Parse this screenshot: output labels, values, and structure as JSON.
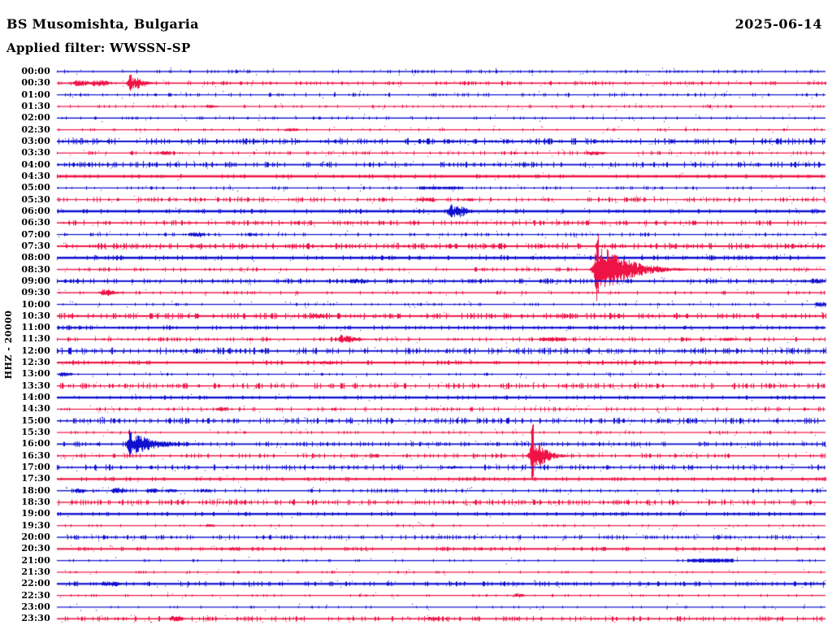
{
  "header": {
    "station": "BS Musomishta, Bulgaria",
    "filter_line": "Applied filter: WWSSN-SP",
    "date": "2025-06-14"
  },
  "axis": {
    "y_label": "HHZ - 20000",
    "first_row": "00:00",
    "last_row": "23:30",
    "minutes_per_row": 30
  },
  "colors": {
    "trace_blue": "#0f0fcf",
    "trace_red": "#ee1245",
    "text": "#000000",
    "background": "#ffffff"
  },
  "chart_data": {
    "type": "line",
    "subtype": "helicorder-seismogram",
    "title": "BS Musomishta, Bulgaria",
    "date": "2025-06-14",
    "filter": "WWSSN-SP",
    "channel": "HHZ",
    "gain": "20000",
    "minutes_per_row": 30,
    "legend_position": "none",
    "grid": false,
    "notable_events": [
      {
        "row": "00:30",
        "approx_position_min": 3,
        "size": "small",
        "color": "red"
      },
      {
        "row": "06:00",
        "approx_position_min": 15,
        "size": "small",
        "color": "blue"
      },
      {
        "row": "08:30",
        "approx_position_min": 21,
        "size": "large",
        "color": "red"
      },
      {
        "row": "16:00",
        "approx_position_min": 3,
        "size": "medium",
        "color": "blue"
      },
      {
        "row": "16:30",
        "approx_position_min": 19,
        "size": "medium",
        "color": "red"
      }
    ],
    "rows": [
      {
        "time": "00:00",
        "color": "blue",
        "thickness": 1.4,
        "noise": 0.7,
        "events": []
      },
      {
        "time": "00:30",
        "color": "red",
        "thickness": 1.6,
        "noise": 0.8,
        "events": [
          {
            "pos": 0.026,
            "amp": 3.5,
            "attack": 8,
            "coda": 6
          },
          {
            "pos": 0.05,
            "amp": 4,
            "attack": 8,
            "coda": 6
          },
          {
            "pos": 0.095,
            "amp": 7,
            "attack": 6,
            "coda": 10,
            "spike": 11
          }
        ]
      },
      {
        "time": "01:00",
        "color": "blue",
        "thickness": 1.2,
        "noise": 0.8,
        "events": []
      },
      {
        "time": "01:30",
        "color": "red",
        "thickness": 1.2,
        "noise": 0.6,
        "events": [
          {
            "pos": 0.196,
            "amp": 2,
            "attack": 5,
            "coda": 4
          }
        ]
      },
      {
        "time": "02:00",
        "color": "blue",
        "thickness": 1.4,
        "noise": 0.5,
        "events": []
      },
      {
        "time": "02:30",
        "color": "red",
        "thickness": 1.2,
        "noise": 0.5,
        "events": [
          {
            "pos": 0.3,
            "amp": 2,
            "attack": 7,
            "coda": 4
          }
        ]
      },
      {
        "time": "03:00",
        "color": "blue",
        "thickness": 2.0,
        "noise": 1.5,
        "events": []
      },
      {
        "time": "03:30",
        "color": "red",
        "thickness": 1.2,
        "noise": 0.8,
        "events": [
          {
            "pos": 0.137,
            "amp": 2.5,
            "attack": 5,
            "coda": 4
          },
          {
            "pos": 0.695,
            "amp": 2.5,
            "attack": 9,
            "coda": 5
          }
        ]
      },
      {
        "time": "04:00",
        "color": "blue",
        "thickness": 1.8,
        "noise": 1.3,
        "events": []
      },
      {
        "time": "04:30",
        "color": "red",
        "thickness": 2.6,
        "noise": 0.5,
        "events": []
      },
      {
        "time": "05:00",
        "color": "blue",
        "thickness": 1.2,
        "noise": 0.6,
        "events": [
          {
            "pos": 0.5,
            "amp": 2,
            "attack": 26,
            "coda": 5,
            "shape": "flat"
          }
        ]
      },
      {
        "time": "05:30",
        "color": "red",
        "thickness": 1.2,
        "noise": 1.2,
        "events": [
          {
            "pos": 0.475,
            "amp": 2.5,
            "attack": 9,
            "coda": 5
          },
          {
            "pos": 0.53,
            "amp": 2,
            "attack": 7,
            "coda": 4
          }
        ]
      },
      {
        "time": "06:00",
        "color": "blue",
        "thickness": 2.6,
        "noise": 0.7,
        "events": [
          {
            "pos": 0.513,
            "amp": 7,
            "attack": 9,
            "coda": 9,
            "spike": 9
          }
        ]
      },
      {
        "time": "06:30",
        "color": "red",
        "thickness": 1.6,
        "noise": 1.2,
        "events": []
      },
      {
        "time": "07:00",
        "color": "blue",
        "thickness": 1.2,
        "noise": 0.7,
        "events": [
          {
            "pos": 0.177,
            "amp": 3,
            "attack": 7,
            "coda": 5
          },
          {
            "pos": 0.25,
            "amp": 2,
            "attack": 5,
            "coda": 4
          }
        ]
      },
      {
        "time": "07:30",
        "color": "red",
        "thickness": 2.0,
        "noise": 1.4,
        "events": []
      },
      {
        "time": "08:00",
        "color": "blue",
        "thickness": 2.6,
        "noise": 0.8,
        "events": []
      },
      {
        "time": "08:30",
        "color": "red",
        "thickness": 1.4,
        "noise": 0.8,
        "events": [
          {
            "pos": 0.703,
            "amp": 26,
            "attack": 8,
            "coda": 32,
            "spike": 45
          }
        ]
      },
      {
        "time": "09:00",
        "color": "blue",
        "thickness": 2.0,
        "noise": 1.0,
        "events": [
          {
            "pos": 0.386,
            "amp": 3,
            "attack": 9,
            "coda": 6
          },
          {
            "pos": 0.985,
            "amp": 3,
            "attack": 7,
            "coda": 5
          }
        ]
      },
      {
        "time": "09:30",
        "color": "red",
        "thickness": 1.4,
        "noise": 0.7,
        "events": [
          {
            "pos": 0.06,
            "amp": 4,
            "attack": 7,
            "coda": 7
          }
        ]
      },
      {
        "time": "10:00",
        "color": "blue",
        "thickness": 1.2,
        "noise": 0.5,
        "events": [
          {
            "pos": 0.99,
            "amp": 3,
            "attack": 7,
            "coda": 4
          }
        ]
      },
      {
        "time": "10:30",
        "color": "red",
        "thickness": 2.0,
        "noise": 1.4,
        "events": [
          {
            "pos": 0.333,
            "amp": 3,
            "attack": 7,
            "coda": 5
          }
        ]
      },
      {
        "time": "11:00",
        "color": "blue",
        "thickness": 2.2,
        "noise": 0.7,
        "events": []
      },
      {
        "time": "11:30",
        "color": "red",
        "thickness": 1.4,
        "noise": 1.0,
        "events": [
          {
            "pos": 0.37,
            "amp": 4.5,
            "attack": 7,
            "coda": 11,
            "spike": 6
          },
          {
            "pos": 0.645,
            "amp": 2.5,
            "attack": 16,
            "coda": 6,
            "shape": "flat"
          },
          {
            "pos": 0.87,
            "amp": 2,
            "attack": 9,
            "coda": 4
          }
        ]
      },
      {
        "time": "12:00",
        "color": "blue",
        "thickness": 1.8,
        "noise": 1.6,
        "events": []
      },
      {
        "time": "12:30",
        "color": "red",
        "thickness": 2.2,
        "noise": 0.8,
        "events": [
          {
            "pos": 0.345,
            "amp": 2,
            "attack": 8,
            "coda": 4
          }
        ]
      },
      {
        "time": "13:00",
        "color": "blue",
        "thickness": 1.2,
        "noise": 0.5,
        "events": [
          {
            "pos": 0.006,
            "amp": 3,
            "attack": 6,
            "coda": 5
          }
        ]
      },
      {
        "time": "13:30",
        "color": "red",
        "thickness": 1.4,
        "noise": 1.5,
        "events": []
      },
      {
        "time": "14:00",
        "color": "blue",
        "thickness": 2.4,
        "noise": 0.6,
        "events": []
      },
      {
        "time": "14:30",
        "color": "red",
        "thickness": 1.2,
        "noise": 1.0,
        "events": [
          {
            "pos": 0.21,
            "amp": 2.5,
            "attack": 5,
            "coda": 4
          }
        ]
      },
      {
        "time": "15:00",
        "color": "blue",
        "thickness": 1.6,
        "noise": 1.5,
        "events": []
      },
      {
        "time": "15:30",
        "color": "red",
        "thickness": 1.2,
        "noise": 0.6,
        "events": []
      },
      {
        "time": "16:00",
        "color": "blue",
        "thickness": 1.8,
        "noise": 1.0,
        "events": [
          {
            "pos": 0.095,
            "amp": 11,
            "attack": 6,
            "coda": 30,
            "spike": 19
          }
        ]
      },
      {
        "time": "16:30",
        "color": "red",
        "thickness": 1.4,
        "noise": 1.1,
        "events": [
          {
            "pos": 0.618,
            "amp": 14,
            "attack": 6,
            "coda": 14,
            "spike": 40
          }
        ]
      },
      {
        "time": "17:00",
        "color": "blue",
        "thickness": 1.6,
        "noise": 1.3,
        "events": [
          {
            "pos": 0.51,
            "amp": 2,
            "attack": 5,
            "coda": 4
          }
        ]
      },
      {
        "time": "17:30",
        "color": "red",
        "thickness": 2.2,
        "noise": 0.7,
        "events": []
      },
      {
        "time": "18:00",
        "color": "blue",
        "thickness": 1.4,
        "noise": 0.8,
        "events": [
          {
            "pos": 0.026,
            "amp": 3,
            "attack": 5,
            "coda": 4
          },
          {
            "pos": 0.075,
            "amp": 3.5,
            "attack": 7,
            "coda": 5
          },
          {
            "pos": 0.12,
            "amp": 3,
            "attack": 6,
            "coda": 4
          },
          {
            "pos": 0.145,
            "amp": 2.5,
            "attack": 5,
            "coda": 4
          },
          {
            "pos": 0.19,
            "amp": 2.5,
            "attack": 5,
            "coda": 4
          }
        ]
      },
      {
        "time": "18:30",
        "color": "red",
        "thickness": 1.4,
        "noise": 1.4,
        "events": []
      },
      {
        "time": "19:00",
        "color": "blue",
        "thickness": 2.4,
        "noise": 0.5,
        "events": []
      },
      {
        "time": "19:30",
        "color": "red",
        "thickness": 1.2,
        "noise": 0.4,
        "events": [
          {
            "pos": 0.195,
            "amp": 2,
            "attack": 4,
            "coda": 4
          }
        ]
      },
      {
        "time": "20:00",
        "color": "blue",
        "thickness": 1.4,
        "noise": 1.0,
        "events": []
      },
      {
        "time": "20:30",
        "color": "red",
        "thickness": 2.0,
        "noise": 0.7,
        "events": [
          {
            "pos": 0.227,
            "amp": 2.5,
            "attack": 5,
            "coda": 4
          }
        ]
      },
      {
        "time": "21:00",
        "color": "blue",
        "thickness": 1.2,
        "noise": 0.4,
        "events": [
          {
            "pos": 0.85,
            "amp": 2.5,
            "attack": 28,
            "coda": 6,
            "shape": "flat"
          }
        ]
      },
      {
        "time": "21:30",
        "color": "red",
        "thickness": 1.2,
        "noise": 0.4,
        "events": []
      },
      {
        "time": "22:00",
        "color": "blue",
        "thickness": 2.2,
        "noise": 0.9,
        "events": [
          {
            "pos": 0.061,
            "amp": 3,
            "attack": 5,
            "coda": 4
          },
          {
            "pos": 0.072,
            "amp": 3,
            "attack": 4,
            "coda": 4
          }
        ]
      },
      {
        "time": "22:30",
        "color": "red",
        "thickness": 1.2,
        "noise": 0.4,
        "events": [
          {
            "pos": 0.597,
            "amp": 2.5,
            "attack": 5,
            "coda": 4
          }
        ]
      },
      {
        "time": "23:00",
        "color": "blue",
        "thickness": 1.2,
        "noise": 0.35,
        "events": []
      },
      {
        "time": "23:30",
        "color": "red",
        "thickness": 1.6,
        "noise": 1.2,
        "events": [
          {
            "pos": 0.15,
            "amp": 3.5,
            "attack": 6,
            "coda": 5
          },
          {
            "pos": 0.484,
            "amp": 3,
            "attack": 5,
            "coda": 4
          }
        ]
      }
    ]
  }
}
